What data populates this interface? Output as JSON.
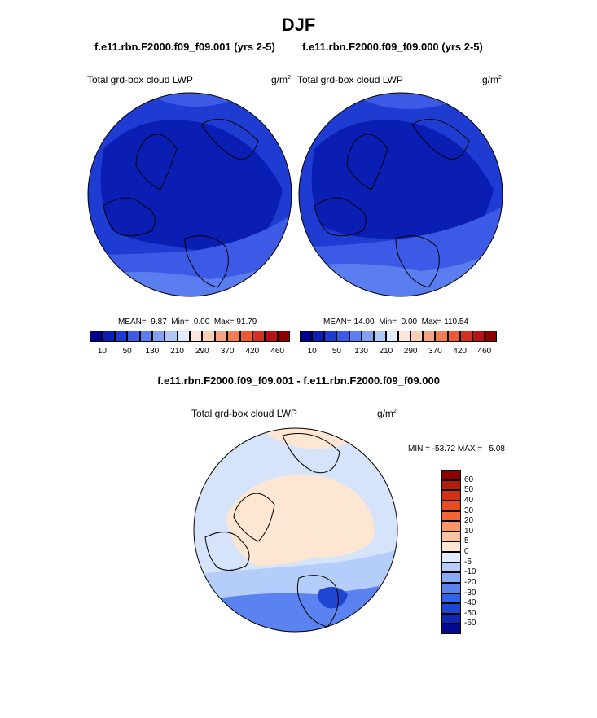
{
  "page": {
    "title": "DJF",
    "subtitle_left": "f.e11.rbn.F2000.f09_f09.001 (yrs 2-5)",
    "subtitle_right": "f.e11.rbn.F2000.f09_f09.000 (yrs 2-5)",
    "diff_title": "f.e11.rbn.F2000.f09_f09.001 - f.e11.rbn.F2000.f09_f09.000"
  },
  "panel_left": {
    "variable": "Total grd-box cloud LWP",
    "units_base": "g/m",
    "units_exp": "2",
    "stats": "MEAN=  9.87  Min=  0.00  Max= 91.79"
  },
  "panel_right": {
    "variable": "Total grd-box cloud LWP",
    "units_base": "g/m",
    "units_exp": "2",
    "stats": "MEAN= 14.00  Min=  0.00  Max= 110.54"
  },
  "panel_diff": {
    "variable": "Total grd-box cloud LWP",
    "units_base": "g/m",
    "units_exp": "2",
    "stats": "MIN = -53.72 MAX =   5.08"
  },
  "colorbar_abs": {
    "tick_labels": [
      "10",
      "50",
      "130",
      "210",
      "290",
      "370",
      "420",
      "460"
    ],
    "colors": [
      "#00008c",
      "#0a1eb4",
      "#1e3cd2",
      "#3c5ae6",
      "#5a7ef0",
      "#82a0f5",
      "#afc8fa",
      "#e1ebfd",
      "#fde6d7",
      "#facdb4",
      "#f5a582",
      "#f07d55",
      "#eb5a32",
      "#d2321e",
      "#b41414",
      "#8c0000"
    ]
  },
  "colorbar_diff": {
    "tick_labels": [
      "60",
      "50",
      "40",
      "30",
      "20",
      "10",
      "5",
      "0",
      "-5",
      "-10",
      "-20",
      "-30",
      "-40",
      "-50",
      "-60"
    ],
    "colors": [
      "#8c0000",
      "#b41e0a",
      "#d23214",
      "#eb4b23",
      "#f56432",
      "#fa9664",
      "#fcc3a0",
      "#fde6d2",
      "#e1ebfd",
      "#b4cdfa",
      "#87aaf5",
      "#5a82f0",
      "#3264e6",
      "#1e46d2",
      "#0f28b4",
      "#000a8c"
    ]
  },
  "map_colors": {
    "abs_background": "#1e3cd2",
    "abs_interior": "#0a1eb4",
    "abs_midband": "#3c5ae6",
    "abs_outerband": "#5a7ef0",
    "diff_background": "#d6e4fb",
    "diff_positive": "#fde6d2",
    "diff_negative": "#b4cdfa",
    "diff_strong_negative": "#5a82f0",
    "diff_deep_negative": "#1e46d2"
  }
}
